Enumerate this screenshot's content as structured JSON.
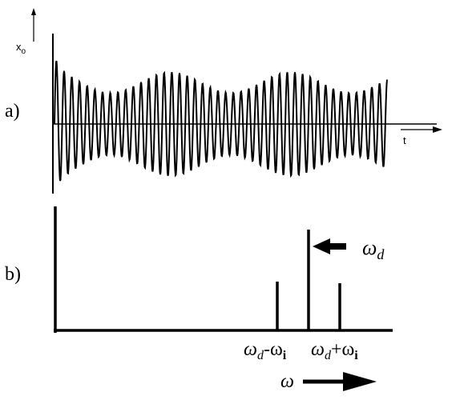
{
  "panel_a": {
    "label": "a)",
    "y_axis": {
      "symbol": "x",
      "subscript": "o"
    },
    "x_axis": "t"
  },
  "panel_b": {
    "label": "b)",
    "drive_label": {
      "symbol": "ω",
      "subscript": "d"
    },
    "lower_label": {
      "parts": [
        "ω",
        "d",
        "-ω",
        "i"
      ]
    },
    "upper_label": {
      "parts": [
        "ω",
        "d",
        "+ω",
        "i"
      ]
    },
    "x_axis": "ω"
  }
}
